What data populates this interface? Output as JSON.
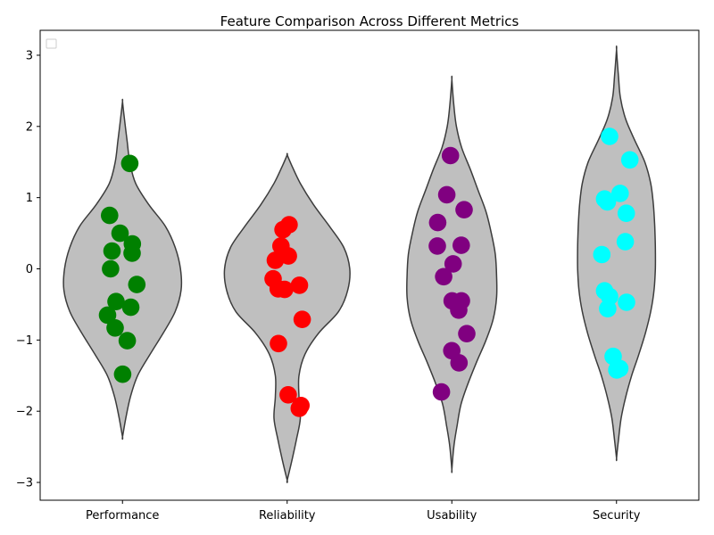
{
  "chart_data": {
    "type": "violin",
    "title": "Feature Comparison Across Different Metrics",
    "xlabel": "",
    "ylabel": "",
    "ylim": [
      -3.25,
      3.35
    ],
    "yticks": [
      -3,
      -2,
      -1,
      0,
      1,
      2,
      3
    ],
    "ytick_labels": [
      "−3",
      "−2",
      "−1",
      "0",
      "1",
      "2",
      "3"
    ],
    "categories": [
      "Performance",
      "Reliability",
      "Usability",
      "Security"
    ],
    "legend": {
      "location": "upper-left",
      "entries": []
    },
    "grid": false,
    "violin_fill": "#bfbfbf",
    "violin_edge": "#3c3c3c",
    "series": [
      {
        "category": "Performance",
        "color": "#008000",
        "points": [
          1.48,
          0.75,
          0.5,
          0.35,
          0.25,
          0.22,
          0.0,
          -0.22,
          -0.46,
          -0.54,
          -0.65,
          -0.83,
          -1.01,
          -1.48
        ],
        "violin": {
          "y": [
            -2.36,
            -2.1,
            -1.8,
            -1.5,
            -1.2,
            -0.9,
            -0.6,
            -0.3,
            0.0,
            0.3,
            0.6,
            0.9,
            1.2,
            1.5,
            1.8,
            2.1,
            2.35
          ],
          "width": [
            0.0,
            0.05,
            0.12,
            0.23,
            0.42,
            0.62,
            0.8,
            0.89,
            0.88,
            0.8,
            0.65,
            0.4,
            0.2,
            0.11,
            0.07,
            0.03,
            0.0
          ]
        }
      },
      {
        "category": "Reliability",
        "color": "#ff0000",
        "points": [
          0.62,
          0.55,
          0.32,
          0.18,
          0.12,
          -0.14,
          -0.23,
          -0.28,
          -0.29,
          -0.71,
          -1.05,
          -1.77,
          -1.92,
          -1.96
        ],
        "violin": {
          "y": [
            -2.97,
            -2.7,
            -2.4,
            -2.1,
            -1.8,
            -1.5,
            -1.2,
            -0.9,
            -0.6,
            -0.3,
            0.0,
            0.3,
            0.6,
            0.9,
            1.2,
            1.45,
            1.6
          ],
          "width": [
            0.0,
            0.07,
            0.14,
            0.2,
            0.18,
            0.18,
            0.27,
            0.48,
            0.78,
            0.92,
            0.95,
            0.86,
            0.64,
            0.4,
            0.2,
            0.07,
            0.0
          ]
        }
      },
      {
        "category": "Usability",
        "color": "#800080",
        "points": [
          1.59,
          1.04,
          0.83,
          0.65,
          0.33,
          0.32,
          0.07,
          -0.11,
          -0.45,
          -0.45,
          -0.58,
          -0.91,
          -1.15,
          -1.32,
          -1.73
        ],
        "violin": {
          "y": [
            -2.82,
            -2.5,
            -2.2,
            -1.9,
            -1.6,
            -1.3,
            -1.0,
            -0.7,
            -0.4,
            -0.1,
            0.2,
            0.5,
            0.8,
            1.1,
            1.4,
            1.7,
            2.0,
            2.3,
            2.66
          ],
          "width": [
            0.0,
            0.03,
            0.08,
            0.14,
            0.25,
            0.38,
            0.52,
            0.63,
            0.68,
            0.68,
            0.66,
            0.6,
            0.52,
            0.4,
            0.28,
            0.15,
            0.07,
            0.03,
            0.0
          ]
        }
      },
      {
        "category": "Security",
        "color": "#00ffff",
        "points": [
          1.86,
          1.53,
          1.06,
          0.98,
          0.94,
          0.78,
          0.38,
          0.2,
          -0.31,
          -0.39,
          -0.47,
          -0.56,
          -1.23,
          -1.4,
          -1.42
        ],
        "violin": {
          "y": [
            -2.66,
            -2.4,
            -2.1,
            -1.8,
            -1.5,
            -1.2,
            -0.9,
            -0.6,
            -0.3,
            0.0,
            0.3,
            0.6,
            0.9,
            1.2,
            1.5,
            1.8,
            2.1,
            2.4,
            2.7,
            3.08
          ],
          "width": [
            0.0,
            0.03,
            0.07,
            0.14,
            0.23,
            0.34,
            0.44,
            0.52,
            0.57,
            0.59,
            0.59,
            0.58,
            0.56,
            0.52,
            0.43,
            0.28,
            0.14,
            0.06,
            0.03,
            0.0
          ]
        }
      }
    ]
  }
}
